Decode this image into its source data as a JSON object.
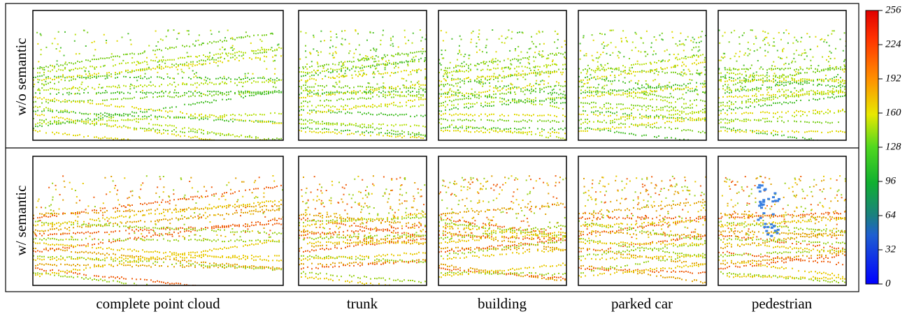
{
  "row_labels": [
    "w/o semantic",
    "w/ semantic"
  ],
  "column_labels": [
    "complete point cloud",
    "trunk",
    "building",
    "parked car",
    "pedestrian"
  ],
  "colorbar": {
    "ticks": [
      0,
      32,
      64,
      96,
      128,
      160,
      192,
      224,
      256
    ]
  }
}
